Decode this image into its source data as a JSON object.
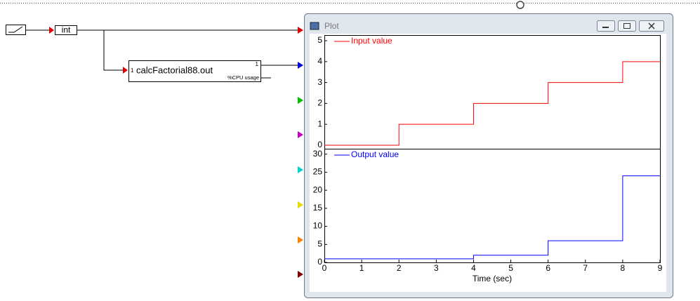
{
  "diagram": {
    "blocks": [
      {
        "label": "int"
      },
      {
        "label": "calcFactorial88.out",
        "input_port": "1",
        "output_port": "1",
        "output_label": "%CPU usage"
      }
    ],
    "window": {
      "title": "Plot"
    }
  },
  "chart_data": [
    {
      "type": "line",
      "x": [
        0,
        2,
        2,
        4,
        4,
        6,
        6,
        8,
        8,
        9
      ],
      "series": [
        {
          "name": "Input value",
          "color": "#ff0000",
          "values": [
            0,
            0,
            1,
            1,
            2,
            2,
            3,
            3,
            4,
            4
          ]
        }
      ],
      "xlim": [
        0,
        9
      ],
      "ylim": [
        -0.17,
        5.27
      ],
      "yticks": [
        0,
        1,
        2,
        3,
        4,
        5
      ],
      "legend": "upper left"
    },
    {
      "type": "line",
      "x": [
        0,
        4,
        4,
        6,
        6,
        8,
        8,
        9
      ],
      "series": [
        {
          "name": "Output value",
          "color": "#0000ff",
          "values": [
            1,
            1,
            2,
            2,
            6,
            6,
            24,
            24
          ]
        }
      ],
      "xlim": [
        0,
        9
      ],
      "ylim": [
        0,
        31.5
      ],
      "yticks": [
        0,
        5,
        10,
        15,
        20,
        25,
        30
      ],
      "xticks": [
        0,
        1,
        2,
        3,
        4,
        5,
        6,
        7,
        8,
        9
      ],
      "xlabel": "Time (sec)",
      "legend": "upper left"
    }
  ]
}
